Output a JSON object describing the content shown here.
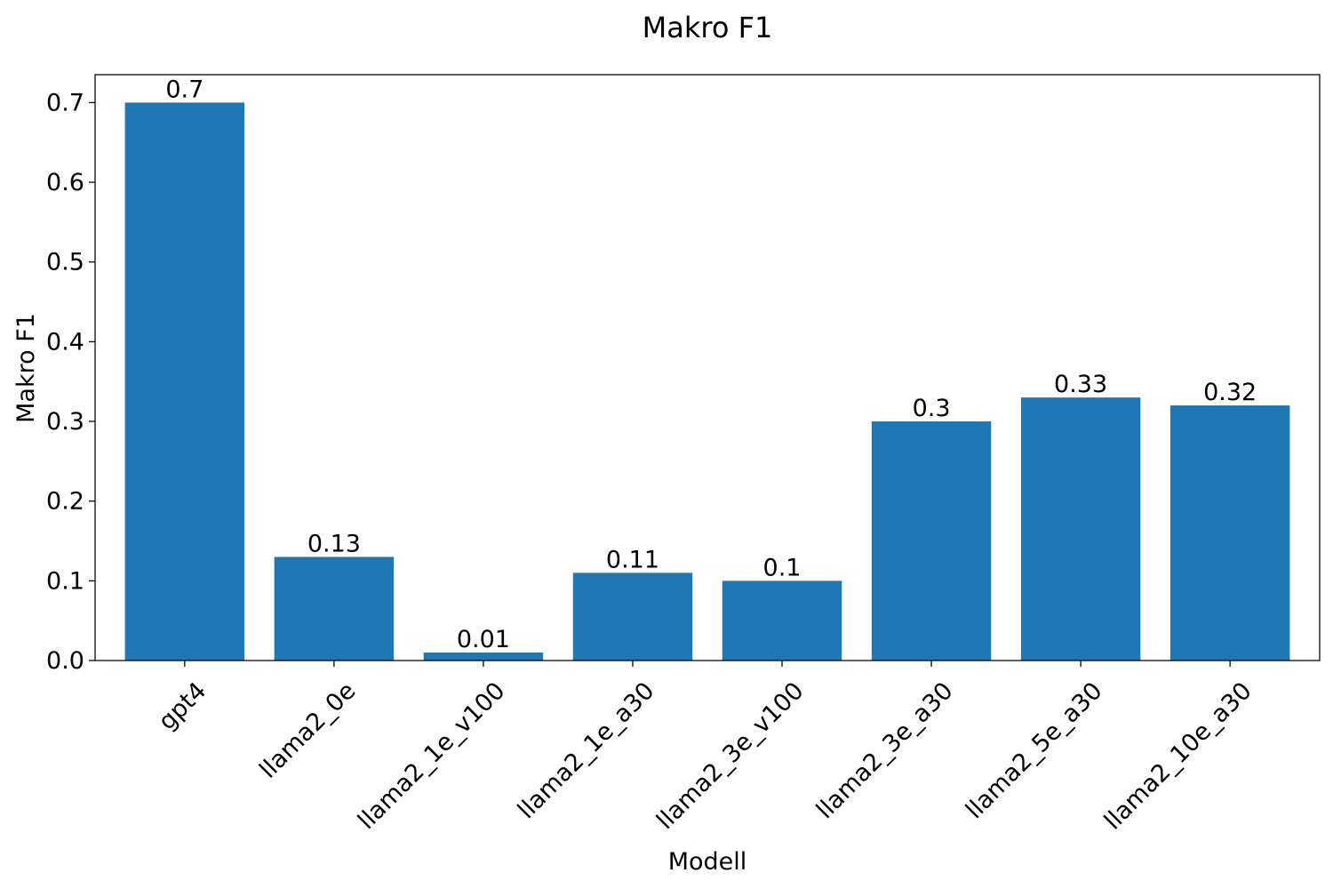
{
  "chart_data": {
    "type": "bar",
    "title": "Makro F1",
    "xlabel": "Modell",
    "ylabel": "Makro F1",
    "categories": [
      "gpt4",
      "llama2_0e",
      "llama2_1e_v100",
      "llama2_1e_a30",
      "llama2_3e_v100",
      "llama2_3e_a30",
      "llama2_5e_a30",
      "llama2_10e_a30"
    ],
    "values": [
      0.7,
      0.13,
      0.01,
      0.11,
      0.1,
      0.3,
      0.33,
      0.32
    ],
    "data_labels": [
      "0.7",
      "0.13",
      "0.01",
      "0.11",
      "0.1",
      "0.3",
      "0.33",
      "0.32"
    ],
    "yticks": [
      0.0,
      0.1,
      0.2,
      0.3,
      0.4,
      0.5,
      0.6,
      0.7
    ],
    "ytick_labels": [
      "0.0",
      "0.1",
      "0.2",
      "0.3",
      "0.4",
      "0.5",
      "0.6",
      "0.7"
    ],
    "ylim": [
      0,
      0.735
    ],
    "grid": false,
    "legend": "none",
    "bar_color": "#1f77b4"
  }
}
